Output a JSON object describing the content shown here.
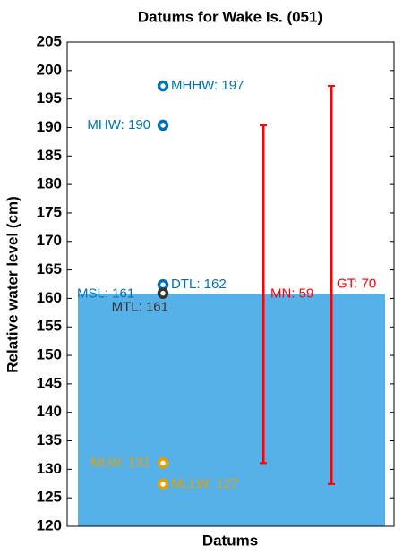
{
  "chart_data": {
    "type": "datum",
    "title": "Datums for Wake Is. (051)",
    "xlabel": "Datums",
    "ylabel": "Relative water level (cm)",
    "ylim": [
      120,
      205
    ],
    "yticks": [
      120,
      125,
      130,
      135,
      140,
      145,
      150,
      155,
      160,
      165,
      170,
      175,
      180,
      185,
      190,
      195,
      200,
      205
    ],
    "area": {
      "value": 160.8,
      "label": "MSL: 161",
      "color": "#56b1e8",
      "label_color": "#0072b2"
    },
    "points": {
      "values": [
        197.3,
        190.4,
        162.4,
        160.9,
        131.1,
        127.4
      ],
      "value_labels": [
        "MHHW: 197",
        "MHW: 190",
        "DTL: 162",
        "MTL: 161",
        "MLW: 131",
        "MLLW: 127"
      ],
      "colors": [
        "#0072b2",
        "#0072b2",
        "#0072b2",
        "#333333",
        "#e69f00",
        "#e69f00"
      ]
    },
    "ranges": {
      "low": [
        131.1,
        127.4
      ],
      "high": [
        190.4,
        197.3
      ],
      "labels": [
        "MN: 59",
        "GT: 70"
      ],
      "color": "#ff0000"
    }
  }
}
